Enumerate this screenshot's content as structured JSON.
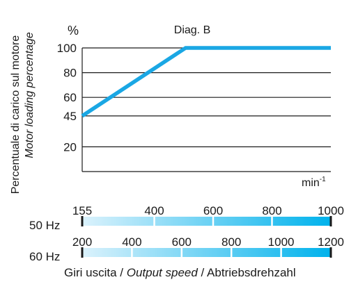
{
  "chart_data": {
    "type": "line",
    "title": "Diag. B",
    "ylabel": [
      "Percentuale di carico sul motore",
      "Motor loading percentage"
    ],
    "yunit": "%",
    "xunit_base": "min",
    "xunit_exp": "-1",
    "xlabel": {
      "it": "Giri uscita / ",
      "en": "Output speed",
      "de": " / Abtriebsdrehzahl"
    },
    "yticks": [
      "100",
      "80",
      "60",
      "45",
      "20"
    ],
    "ylim": [
      0,
      100
    ],
    "series": [
      {
        "color": "#1aa7e4",
        "points": [
          [
            0,
            45
          ],
          [
            0.416,
            100
          ],
          [
            1,
            100
          ]
        ]
      }
    ],
    "speed_scales": [
      {
        "label": "50 Hz",
        "range": [
          155,
          1000
        ],
        "ticks": [
          "155",
          "400",
          "600",
          "800",
          "1000"
        ],
        "tick_values": [
          155,
          400,
          600,
          800,
          1000
        ]
      },
      {
        "label": "60 Hz",
        "range": [
          200,
          1200
        ],
        "ticks": [
          "200",
          "400",
          "600",
          "800",
          "1000",
          "1200"
        ],
        "tick_values": [
          200,
          400,
          600,
          800,
          1000,
          1200
        ]
      }
    ],
    "gradient_colors": [
      "#dbf2fc",
      "#00b2ec"
    ],
    "grid": true,
    "legend": "none"
  }
}
